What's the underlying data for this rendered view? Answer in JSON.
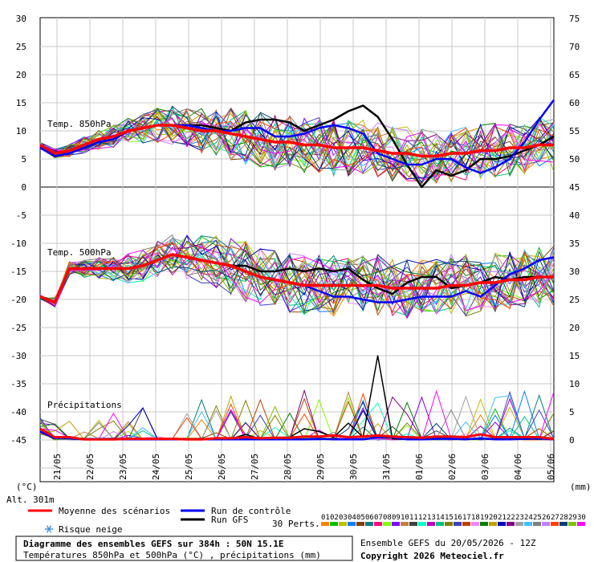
{
  "chart_data": {
    "type": "line",
    "title": "Diagramme des ensembles GEFS sur 384h : 50N 15.1E",
    "subtitle": "Températures 850hPa et 500hPa (°C) , précipitations (mm)",
    "run_info": "Ensemble GEFS du 20/05/2026 - 12Z",
    "copyright": "Copyright 2026 Meteociel.fr",
    "altitude": "Alt. 301m",
    "left_unit": "(°C)",
    "right_unit": "(mm)",
    "left_ticks": [
      "30",
      "25",
      "20",
      "15",
      "10",
      "5",
      "0",
      "-5",
      "-10",
      "-15",
      "-20",
      "-25",
      "-30",
      "-35",
      "-40",
      "-45"
    ],
    "right_ticks": [
      "75",
      "70",
      "65",
      "60",
      "55",
      "50",
      "45",
      "40",
      "35",
      "30",
      "25",
      "20",
      "15",
      "10",
      "5",
      "0"
    ],
    "x_labels": [
      "21/05",
      "22/05",
      "23/05",
      "24/05",
      "25/05",
      "26/05",
      "27/05",
      "28/05",
      "29/05",
      "30/05",
      "31/05",
      "01/06",
      "02/06",
      "03/06",
      "04/06",
      "05/06"
    ],
    "ylim": [
      -45,
      30
    ],
    "section_labels": {
      "t850": "Temp. 850hPa",
      "t500": "Temp. 500hPa",
      "precip": "Précipitations"
    },
    "legend": {
      "mean": "Moyenne des scénarios",
      "control": "Run de contrôle",
      "gfs": "Run GFS",
      "snow": "Risque neige",
      "perts": "30 Perts."
    },
    "member_labels": [
      "01",
      "02",
      "03",
      "04",
      "05",
      "06",
      "07",
      "08",
      "09",
      "10",
      "11",
      "12",
      "13",
      "14",
      "15",
      "16",
      "17",
      "18",
      "19",
      "20",
      "21",
      "22",
      "23",
      "24",
      "25",
      "26",
      "27",
      "28",
      "29",
      "30"
    ],
    "member_colors": [
      "#ff8000",
      "#00c000",
      "#c0c000",
      "#0080ff",
      "#804000",
      "#008080",
      "#ff0080",
      "#80ff00",
      "#8000ff",
      "#c08040",
      "#404040",
      "#00ffc0",
      "#c000c0",
      "#00c080",
      "#808000",
      "#4040c0",
      "#c04000",
      "#ff80ff",
      "#008000",
      "#c0a000",
      "#0000c0",
      "#800080",
      "#a0a0a0",
      "#40c0ff",
      "#808080",
      "#c080ff",
      "#ff4000",
      "#004080",
      "#80c000",
      "#ff00ff"
    ],
    "series_colors": {
      "mean": "#ff0000",
      "control": "#0000ff",
      "gfs": "#000000"
    },
    "t850": {
      "mean": [
        7.5,
        6,
        6.5,
        7.5,
        8.5,
        9,
        10,
        10.5,
        11,
        11,
        10.5,
        10,
        10,
        9.5,
        9,
        8.5,
        8,
        8,
        7.5,
        7.5,
        7,
        7,
        7,
        6.5,
        6,
        6,
        5.5,
        5.5,
        6,
        6,
        6.5,
        6.5,
        7,
        7,
        7.5,
        7.5
      ],
      "control": [
        7,
        5.5,
        6,
        7,
        8,
        8.5,
        10,
        10.5,
        11,
        11,
        11,
        10.5,
        10,
        10,
        10.5,
        10.5,
        9,
        9,
        9.5,
        10.5,
        11,
        10.5,
        9.5,
        6,
        5,
        4,
        4,
        5,
        5,
        3.5,
        2.5,
        3.5,
        5,
        8,
        12,
        15.5
      ],
      "gfs": [
        7,
        5.5,
        6,
        7,
        8,
        8.5,
        10,
        10.5,
        11,
        11,
        11,
        11,
        10.5,
        10,
        11.5,
        12,
        12,
        11.5,
        10,
        11,
        12,
        13.5,
        14.5,
        12.5,
        8.5,
        4,
        0,
        3,
        2,
        3,
        5,
        5,
        5.5,
        6.5,
        7.5,
        9
      ]
    },
    "t500": {
      "mean": [
        -19.5,
        -20.5,
        -14.5,
        -14.5,
        -14.5,
        -14.5,
        -14.5,
        -14,
        -13,
        -12,
        -12.5,
        -13,
        -13.5,
        -14,
        -15,
        -16,
        -16.5,
        -17,
        -17.5,
        -17.5,
        -17.5,
        -17.5,
        -17.5,
        -17.5,
        -18,
        -18,
        -18,
        -18,
        -17.5,
        -17.5,
        -17,
        -17,
        -16.5,
        -16.5,
        -16,
        -16
      ],
      "control": [
        -19.5,
        -20.5,
        -14.5,
        -14.5,
        -14.5,
        -14.5,
        -14.5,
        -14,
        -13,
        -12,
        -12.5,
        -13,
        -13.5,
        -14,
        -15,
        -16,
        -16.5,
        -17,
        -17.5,
        -18.5,
        -19.5,
        -19.5,
        -20,
        -20.5,
        -20.5,
        -20,
        -19.5,
        -19.5,
        -19.5,
        -18.5,
        -19.5,
        -17.5,
        -15.5,
        -14.5,
        -13,
        -12.5
      ],
      "gfs": [
        -19.5,
        -20.5,
        -14.5,
        -14.5,
        -14.5,
        -14.5,
        -14.5,
        -14,
        -13,
        -12,
        -12.5,
        -13,
        -13.5,
        -14,
        -14,
        -15,
        -15,
        -14.5,
        -15,
        -14.5,
        -15,
        -14.5,
        -16.5,
        -18,
        -19,
        -17,
        -16,
        -16,
        -18,
        -17.5,
        -17,
        -16,
        -16.5,
        -16,
        -16,
        -16
      ]
    },
    "precip_mm": {
      "mean": [
        2,
        0.5,
        0.5,
        0.1,
        0.1,
        0.1,
        0.2,
        0.2,
        0.2,
        0.2,
        0.1,
        0.1,
        0.3,
        0.3,
        0.5,
        0.3,
        0.4,
        0.4,
        0.6,
        0.6,
        0.8,
        0.5,
        0.6,
        0.8,
        0.6,
        0.5,
        0.4,
        0.6,
        0.6,
        0.5,
        1,
        0.5,
        0.5,
        0.5,
        0.5,
        0.2
      ],
      "control": [
        1.5,
        0.3,
        0.3,
        0.1,
        0.1,
        0.1,
        0.1,
        0.1,
        0.1,
        0.1,
        0.1,
        0.1,
        0.1,
        0.1,
        0.1,
        0.1,
        0.1,
        0.1,
        0.1,
        0.2,
        0.1,
        0.1,
        0.1,
        0.5,
        0.5,
        0.1,
        0.1,
        0.2,
        0.2,
        0.1,
        0.3,
        0.1,
        0.1,
        0.2,
        0.3,
        0.1
      ],
      "gfs": [
        1.5,
        0.3,
        0.5,
        0.1,
        0.1,
        0.1,
        0.1,
        0.1,
        0.1,
        0.1,
        0.1,
        0.1,
        0.2,
        0.2,
        1,
        0.2,
        0.4,
        0.5,
        2,
        1.5,
        0.5,
        3,
        0.5,
        15,
        0.2,
        0.1,
        0.2,
        0.5,
        0.2,
        0.1,
        0.2,
        0.2,
        0.2,
        0.1,
        0.2,
        0.1
      ]
    }
  }
}
